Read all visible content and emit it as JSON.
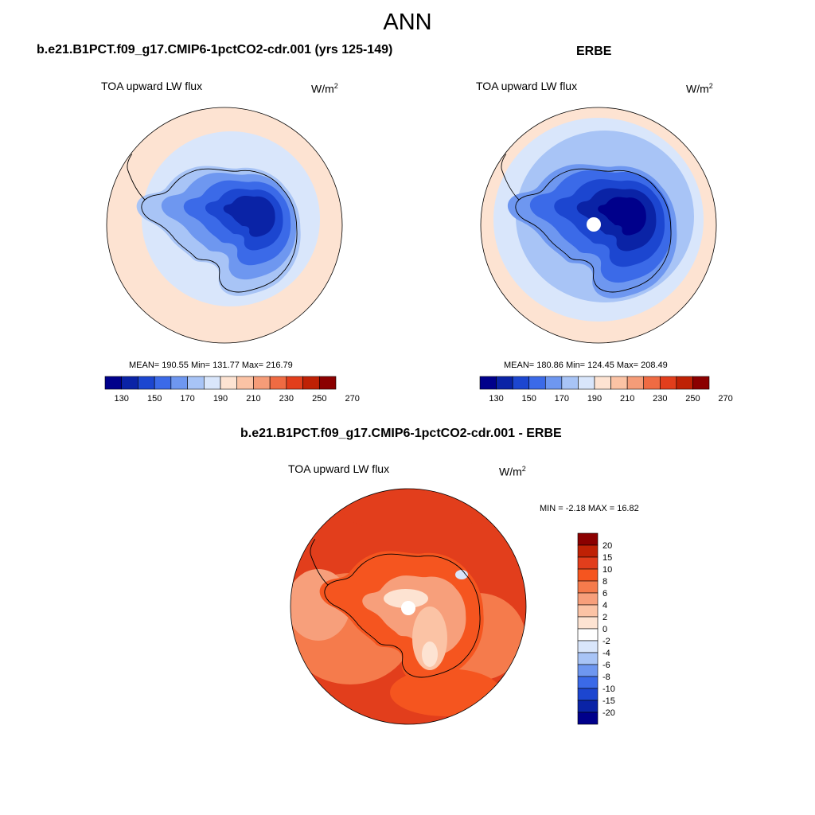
{
  "page": {
    "title": "ANN"
  },
  "panels": {
    "left": {
      "title": "b.e21.B1PCT.f09_g17.CMIP6-1pctCO2-cdr.001 (yrs 125-149)",
      "variable": "TOA upward LW flux",
      "units_base": "W/m",
      "units_exp": "2",
      "stats": "MEAN= 190.55  Min= 131.77  Max= 216.79"
    },
    "right": {
      "title": "ERBE",
      "variable": "TOA upward LW flux",
      "units_base": "W/m",
      "units_exp": "2",
      "stats": "MEAN= 180.86  Min= 124.45  Max= 208.49"
    },
    "diff": {
      "title": "b.e21.B1PCT.f09_g17.CMIP6-1pctCO2-cdr.001 - ERBE",
      "variable": "TOA upward LW flux",
      "units_base": "W/m",
      "units_exp": "2",
      "stats": "MIN =  -2.18 MAX =  16.82"
    }
  },
  "colorbars": {
    "absolute": {
      "colors": [
        "#00008b",
        "#0a23a6",
        "#1c46d0",
        "#3b6ae8",
        "#6e97f0",
        "#a8c4f6",
        "#d9e6fb",
        "#fde3d2",
        "#fbc3a5",
        "#f59c78",
        "#ef6b43",
        "#e23e1c",
        "#bf2105",
        "#8b0000"
      ],
      "labels": [
        "130",
        "150",
        "170",
        "190",
        "210",
        "230",
        "250",
        "270"
      ]
    },
    "difference": {
      "colors": [
        "#8b0000",
        "#bf2105",
        "#e23e1c",
        "#f5551f",
        "#f57b4c",
        "#f79f7b",
        "#fbc3a5",
        "#fde3d2",
        "#ffffff",
        "#d9e6fb",
        "#a8c4f6",
        "#6e97f0",
        "#3b6ae8",
        "#1c46d0",
        "#0a23a6",
        "#00008b"
      ],
      "labels": [
        "20",
        "15",
        "10",
        "8",
        "6",
        "4",
        "2",
        "0",
        "-2",
        "-4",
        "-6",
        "-8",
        "-10",
        "-15",
        "-20"
      ]
    }
  }
}
